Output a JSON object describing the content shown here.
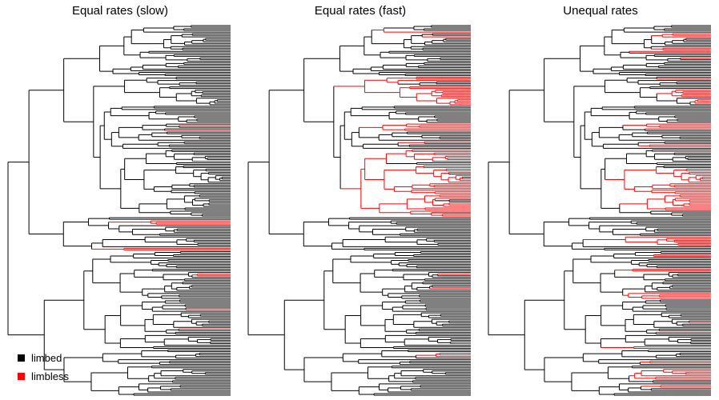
{
  "panels": [
    {
      "title": "Equal rates (slow)"
    },
    {
      "title": "Equal rates (fast)"
    },
    {
      "title": "Unequal rates"
    }
  ],
  "legend": [
    {
      "label": "limbed",
      "color": "#000000"
    },
    {
      "label": "limbless",
      "color": "#ff0000"
    }
  ]
}
